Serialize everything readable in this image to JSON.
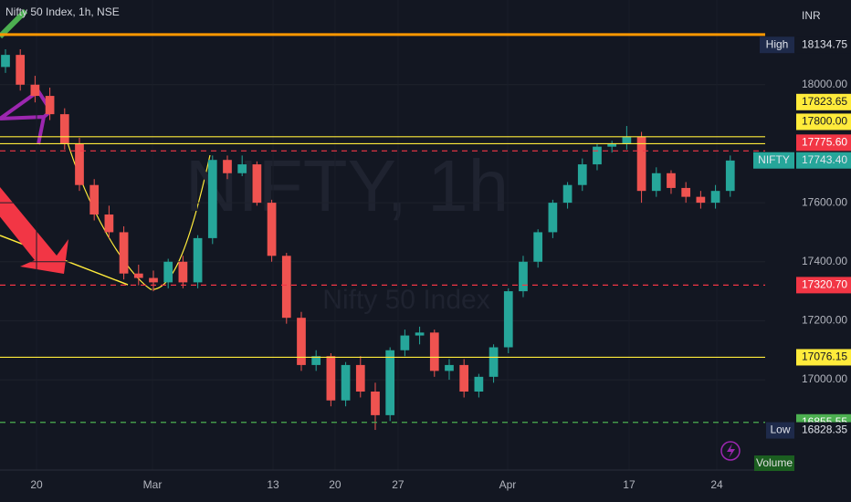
{
  "chart_data": {
    "type": "candlestick",
    "title": "Nifty 50 Index, 1h, NSE",
    "currency": "INR",
    "watermark": "NIFTY, 1h",
    "watermark_subtitle": "Nifty 50 Index",
    "up_color": "#26a69a",
    "down_color": "#ef5350",
    "xlim": [
      -0.37,
      51.36
    ],
    "xticks": [
      {
        "value": 2.1,
        "label": "20"
      },
      {
        "value": 9.94,
        "label": "Mar"
      },
      {
        "value": 18.09,
        "label": "13"
      },
      {
        "value": 22.28,
        "label": "20"
      },
      {
        "value": 26.54,
        "label": "27"
      },
      {
        "value": 33.95,
        "label": "Apr"
      },
      {
        "value": 42.16,
        "label": "17"
      },
      {
        "value": 48.09,
        "label": "24"
      }
    ],
    "ylim": [
      16694,
      18287
    ],
    "yticks": [
      {
        "value": 17000,
        "label": "17000.00"
      },
      {
        "value": 17200,
        "label": "17200.00"
      },
      {
        "value": 17400,
        "label": "17400.00"
      },
      {
        "value": 17600,
        "label": "17600.00"
      },
      {
        "value": 18000,
        "label": "18000.00"
      }
    ],
    "open": [
      18060,
      18101,
      18000,
      17962,
      17900,
      17800,
      17660,
      17560,
      17500,
      17360,
      17345,
      17330,
      17400,
      17330,
      17480,
      17745,
      17700,
      17730,
      17600,
      17420,
      17210,
      17050,
      17080,
      16930,
      17050,
      16960,
      16880,
      17100,
      17150,
      17160,
      17030,
      17050,
      16960,
      17010,
      17110,
      17300,
      17400,
      17500,
      17600,
      17660,
      17730,
      17790,
      17800,
      17823,
      17640,
      17700,
      17650,
      17620,
      17600,
      17640
    ],
    "high": [
      18120,
      18120,
      18030,
      17990,
      17920,
      17820,
      17680,
      17590,
      17520,
      17390,
      17370,
      17410,
      17420,
      17490,
      17760,
      17760,
      17760,
      17740,
      17610,
      17430,
      17230,
      17100,
      17090,
      17060,
      17080,
      16990,
      17110,
      17170,
      17180,
      17170,
      17070,
      17070,
      17020,
      17120,
      17310,
      17420,
      17510,
      17610,
      17670,
      17750,
      17800,
      17810,
      17860,
      17840,
      17720,
      17710,
      17670,
      17640,
      17660,
      17760
    ],
    "low": [
      18040,
      17980,
      17940,
      17880,
      17780,
      17640,
      17540,
      17480,
      17340,
      17320,
      17300,
      17310,
      17310,
      17310,
      17460,
      17680,
      17690,
      17590,
      17400,
      17190,
      17030,
      17030,
      16910,
      16910,
      16940,
      16830,
      16860,
      17080,
      17120,
      17010,
      17000,
      16940,
      16940,
      16990,
      17090,
      17280,
      17380,
      17480,
      17580,
      17640,
      17710,
      17770,
      17780,
      17600,
      17620,
      17630,
      17600,
      17580,
      17580,
      17620
    ],
    "close": [
      18101,
      18000,
      17962,
      17900,
      17800,
      17660,
      17560,
      17500,
      17360,
      17345,
      17330,
      17400,
      17330,
      17480,
      17745,
      17700,
      17730,
      17600,
      17420,
      17210,
      17050,
      17080,
      16930,
      17050,
      16960,
      16880,
      17100,
      17150,
      17160,
      17030,
      17050,
      16960,
      17010,
      17110,
      17300,
      17400,
      17500,
      17600,
      17660,
      17730,
      17790,
      17800,
      17823,
      17640,
      17700,
      17650,
      17620,
      17600,
      17640,
      17743
    ],
    "levels": [
      {
        "value": 18170,
        "color": "#ff9800",
        "style": "solid"
      },
      {
        "value": 17823.65,
        "label": "17823.65",
        "color": "#ffeb3b",
        "style": "solid"
      },
      {
        "value": 17800,
        "label": "17800.00",
        "color": "#ffeb3b",
        "style": "solid"
      },
      {
        "value": 17775.6,
        "label": "17775.60",
        "color": "#f23645",
        "style": "dashed"
      },
      {
        "value": 17320.7,
        "label": "17320.70",
        "color": "#f23645",
        "style": "dashed"
      },
      {
        "value": 17076.15,
        "label": "17076.15",
        "color": "#ffeb3b",
        "style": "solid"
      },
      {
        "value": 16855.55,
        "label": "16855.55",
        "color": "#4caf50",
        "style": "dashed"
      }
    ],
    "markers": [
      {
        "tag": "High",
        "value": 18134.75,
        "label": "18134.75",
        "color": "#131722",
        "tag_color": "#1e2a4a"
      },
      {
        "tag": "NIFTY",
        "value": 17743.4,
        "label": "17743.40",
        "color": "#26a69a",
        "tag_color": "#26a69a"
      },
      {
        "tag": "Low",
        "value": 16828.35,
        "label": "16828.35",
        "color": "#131722",
        "tag_color": "#1e2a4a"
      }
    ],
    "volume_label": "Volume"
  }
}
